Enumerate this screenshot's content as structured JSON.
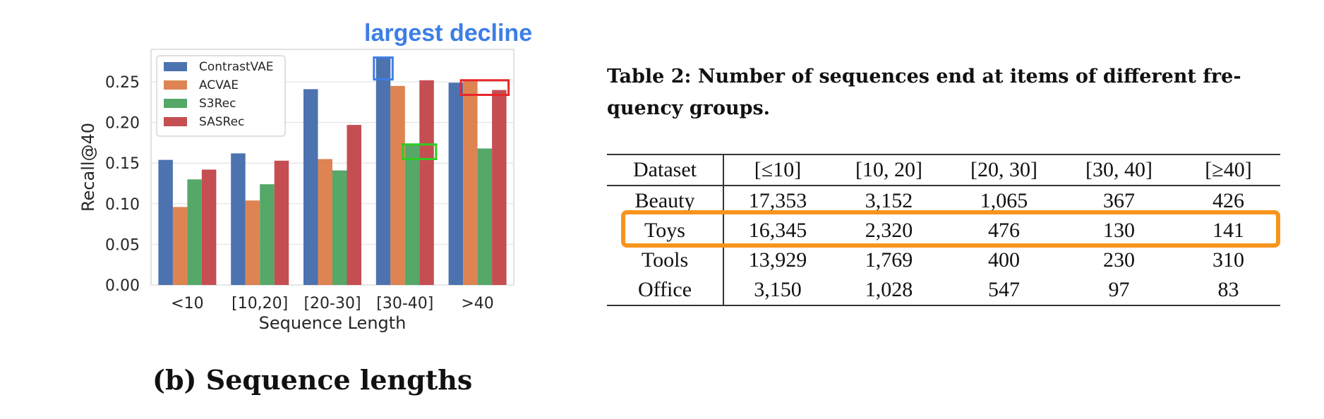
{
  "chart_data": {
    "type": "bar",
    "categories": [
      "<10",
      "[10,20]",
      "[20-30]",
      "[30-40]",
      ">40"
    ],
    "series": [
      {
        "name": "ContrastVAE",
        "color": "#4c72b0",
        "values": [
          0.154,
          0.162,
          0.241,
          0.279,
          0.249
        ]
      },
      {
        "name": "ACVAE",
        "color": "#dd8452",
        "values": [
          0.096,
          0.104,
          0.155,
          0.245,
          0.252
        ]
      },
      {
        "name": "S3Rec",
        "color": "#55a868",
        "values": [
          0.13,
          0.124,
          0.141,
          0.172,
          0.168
        ]
      },
      {
        "name": "SASRec",
        "color": "#c44e52",
        "values": [
          0.142,
          0.153,
          0.197,
          0.252,
          0.24
        ]
      }
    ],
    "title": "",
    "xlabel": "Sequence Length",
    "ylabel": "Recall@40",
    "ylim": [
      0,
      0.29
    ],
    "yticks": [
      "0.00",
      "0.05",
      "0.10",
      "0.15",
      "0.20",
      "0.25"
    ],
    "ytick_values": [
      0,
      0.05,
      0.1,
      0.15,
      0.2,
      0.25
    ],
    "grid": true,
    "legend_position": "top-left",
    "annotation": {
      "text": "largest decline",
      "color": "#3d7ee6"
    },
    "highlight_boxes": [
      {
        "color": "#3d7ee6",
        "category": "[30-40]",
        "series": [
          "ContrastVAE"
        ],
        "y_range": [
          0.253,
          0.28
        ]
      },
      {
        "color": "#e8262b",
        "category": ">40",
        "series": [
          "ACVAE",
          "SASRec"
        ],
        "y_range": [
          0.234,
          0.252
        ]
      },
      {
        "color": "#2ecc1f",
        "category": "[30-40]",
        "series": [
          "S3Rec",
          "SASRec"
        ],
        "y_range": [
          0.155,
          0.173
        ]
      }
    ]
  },
  "caption": "(b) Sequence lengths",
  "table": {
    "caption": "Table 2: Number of sequences end at items of different fre-quency groups.",
    "headers": [
      "Dataset",
      "[≤10]",
      "[10, 20]",
      "[20, 30]",
      "[30, 40]",
      "[≥40]"
    ],
    "rows": [
      [
        "Beauty",
        "17,353",
        "3,152",
        "1,065",
        "367",
        "426"
      ],
      [
        "Toys",
        "16,345",
        "2,320",
        "476",
        "130",
        "141"
      ],
      [
        "Tools",
        "13,929",
        "1,769",
        "400",
        "230",
        "310"
      ],
      [
        "Office",
        "3,150",
        "1,028",
        "547",
        "97",
        "83"
      ]
    ],
    "highlight_row": "Toys",
    "highlight_color": "#f7941d"
  }
}
